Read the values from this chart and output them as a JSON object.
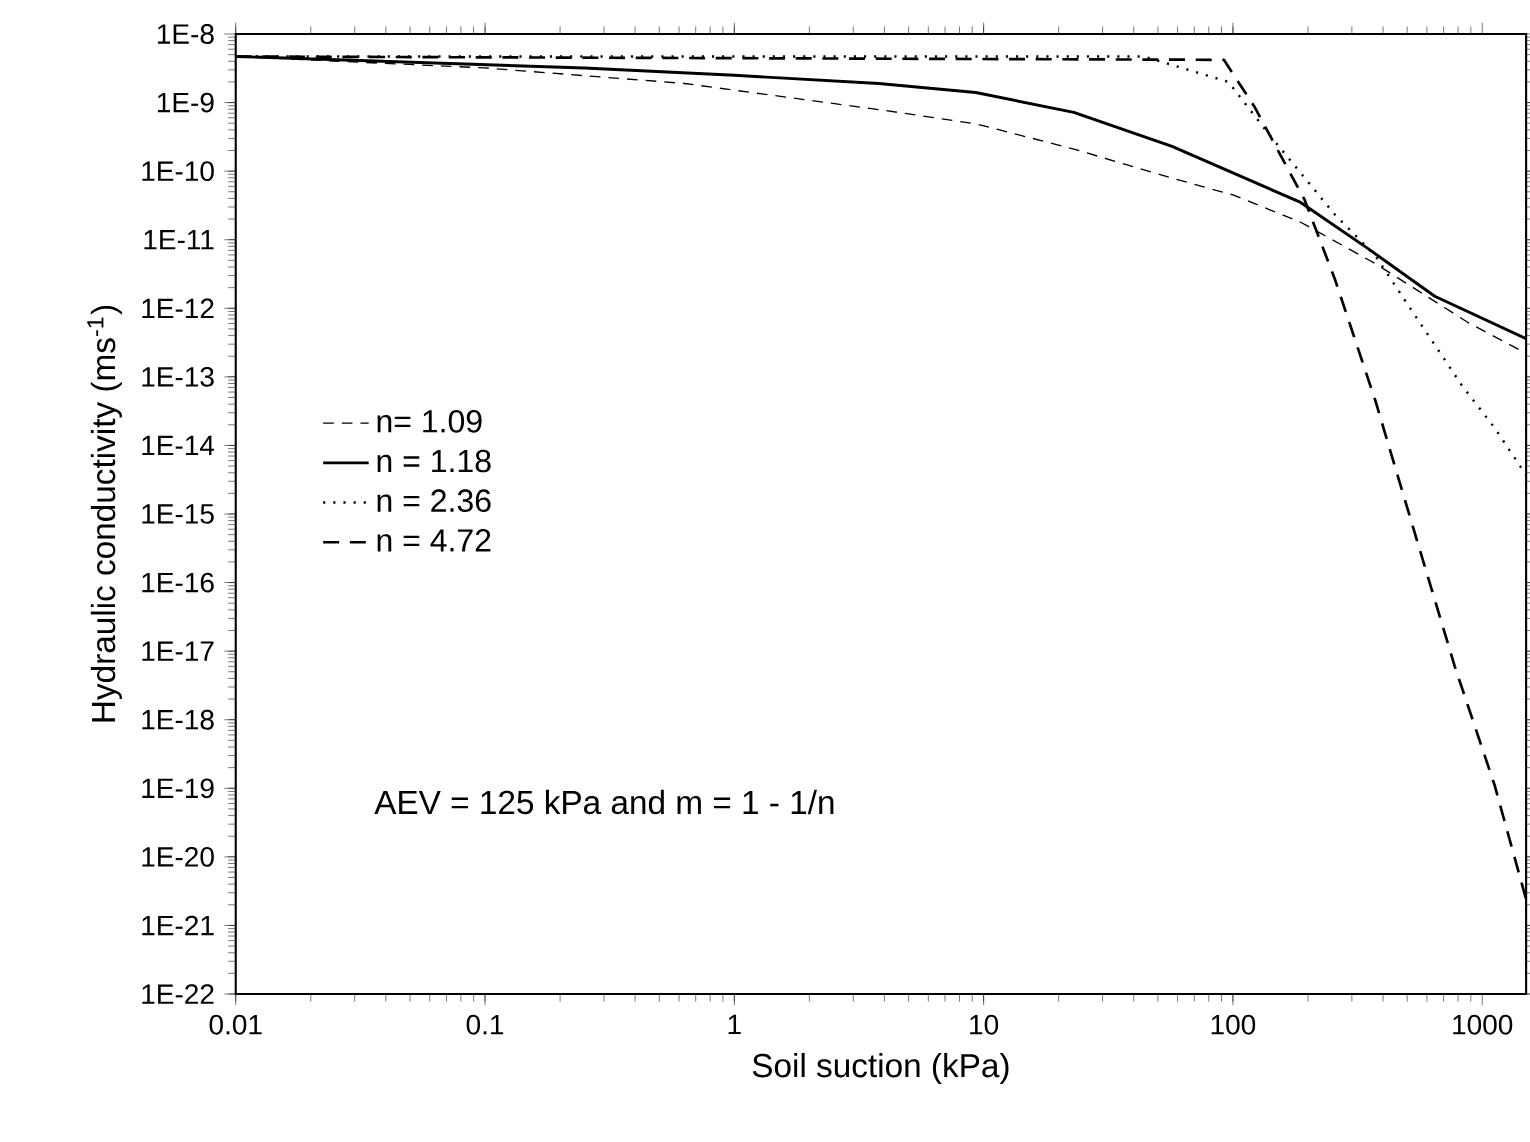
{
  "chart_data": {
    "type": "line",
    "xlabel": "Soil suction (kPa)",
    "ylabel": "Hydraulic conductivity (ms$^{-1}$)",
    "log": "xy",
    "grid": false,
    "legend": "left",
    "marker": "none",
    "xlim": [
      0.01,
      1500
    ],
    "xticks": [
      0.01,
      0.1,
      1,
      10,
      100,
      1000
    ],
    "ylim": [
      1e-22,
      1e-08
    ],
    "yticks": [
      {
        "value": 1e-22,
        "label": "1E-22"
      },
      {
        "value": 1e-21,
        "label": "1E-21"
      },
      {
        "value": 1e-20,
        "label": "1E-20"
      },
      {
        "value": 1e-19,
        "label": "1E-19"
      },
      {
        "value": 1e-18,
        "label": "1E-18"
      },
      {
        "value": 1e-17,
        "label": "1E-17"
      },
      {
        "value": 1e-16,
        "label": "1E-16"
      },
      {
        "value": 1e-15,
        "label": "1E-15"
      },
      {
        "value": 1e-14,
        "label": "1E-14"
      },
      {
        "value": 1e-13,
        "label": "1E-13"
      },
      {
        "value": 1e-12,
        "label": "1E-12"
      },
      {
        "value": 1e-11,
        "label": "1E-11"
      },
      {
        "value": 1e-10,
        "label": "1E-10"
      },
      {
        "value": 1e-09,
        "label": "1E-9"
      },
      {
        "value": 1e-08,
        "label": "1E-8"
      }
    ],
    "annotations": [
      "AEV = 125 kPa and m = 1 - 1/n"
    ],
    "series": [
      {
        "name": "n= 1.09",
        "color": "#000000",
        "line_style": "dashed",
        "x": [
          0.01,
          0.1,
          0.63,
          3.8,
          9.3,
          23,
          57,
          100,
          187,
          372,
          871,
          1500
        ],
        "values": [
          4.7e-09,
          3.2e-09,
          1.9e-09,
          7.9e-10,
          4.9e-10,
          2.1e-10,
          7.9e-11,
          4.5e-11,
          1.8e-11,
          4.5e-12,
          6.3e-13,
          2.2e-13
        ]
      },
      {
        "name": "n = 1.18",
        "color": "#000000",
        "line_style": "solid",
        "x": [
          0.01,
          0.25,
          1,
          3.8,
          9.3,
          23,
          57,
          187,
          345,
          645,
          1500
        ],
        "values": [
          4.7e-09,
          3.2e-09,
          2.5e-09,
          1.9e-09,
          1.4e-09,
          7.2e-10,
          2.3e-10,
          3.5e-11,
          7.6e-12,
          1.5e-12,
          3.6e-13
        ]
      },
      {
        "name": "n = 2.36",
        "color": "#000000",
        "line_style": "dotted",
        "x": [
          0.01,
          44,
          96,
          139,
          257,
          372,
          537,
          835,
          1122,
          1500
        ],
        "values": [
          4.7e-09,
          4.7e-09,
          2e-09,
          3.5e-10,
          2.3e-11,
          5.9e-12,
          7.9e-13,
          7.2e-14,
          1.8e-14,
          3.7e-15
        ]
      },
      {
        "name": "n = 4.72",
        "color": "#000000",
        "line_style": "dashed",
        "x": [
          0.01,
          92,
          122,
          194,
          257,
          372,
          537,
          776,
          1122,
          1500
        ],
        "values": [
          4.7e-09,
          4.2e-09,
          8.7e-10,
          3.8e-11,
          2.6e-12,
          4.6e-14,
          5.2e-16,
          6e-18,
          1.1e-19,
          2.4e-21
        ]
      }
    ]
  }
}
